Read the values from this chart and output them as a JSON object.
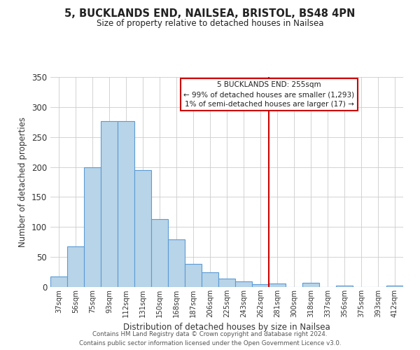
{
  "title": "5, BUCKLANDS END, NAILSEA, BRISTOL, BS48 4PN",
  "subtitle": "Size of property relative to detached houses in Nailsea",
  "xlabel": "Distribution of detached houses by size in Nailsea",
  "ylabel": "Number of detached properties",
  "bar_labels": [
    "37sqm",
    "56sqm",
    "75sqm",
    "93sqm",
    "112sqm",
    "131sqm",
    "150sqm",
    "168sqm",
    "187sqm",
    "206sqm",
    "225sqm",
    "243sqm",
    "262sqm",
    "281sqm",
    "300sqm",
    "318sqm",
    "337sqm",
    "356sqm",
    "375sqm",
    "393sqm",
    "412sqm"
  ],
  "bar_values": [
    18,
    68,
    200,
    277,
    277,
    195,
    113,
    79,
    39,
    25,
    14,
    9,
    5,
    6,
    0,
    7,
    0,
    2,
    0,
    0,
    2
  ],
  "bar_color": "#b8d4e8",
  "bar_edge_color": "#5b9bd5",
  "vline_x": 12.5,
  "vline_color": "#cc0000",
  "ylim": [
    0,
    350
  ],
  "yticks": [
    0,
    50,
    100,
    150,
    200,
    250,
    300,
    350
  ],
  "annotation_title": "5 BUCKLANDS END: 255sqm",
  "annotation_line1": "← 99% of detached houses are smaller (1,293)",
  "annotation_line2": "1% of semi-detached houses are larger (17) →",
  "footer_line1": "Contains HM Land Registry data © Crown copyright and database right 2024.",
  "footer_line2": "Contains public sector information licensed under the Open Government Licence v3.0.",
  "background_color": "#ffffff",
  "grid_color": "#cccccc"
}
